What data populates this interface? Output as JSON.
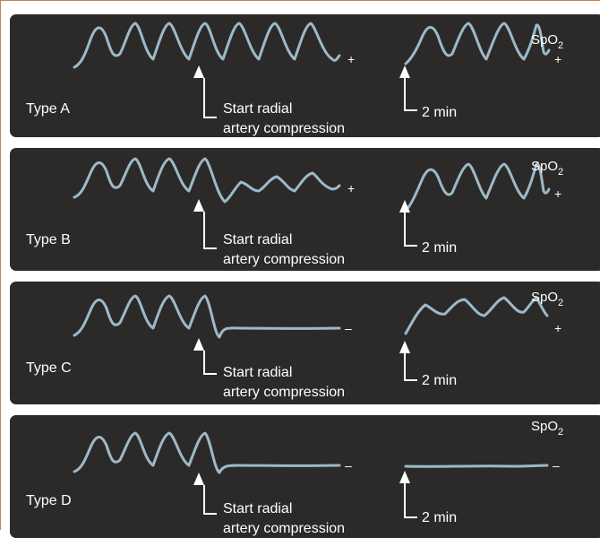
{
  "panels": [
    {
      "type_label": "Type A",
      "caption_line1": "Start radial",
      "caption_line2": "artery compression",
      "sign_left": "+",
      "sign_right": "+",
      "time_label": "2 min",
      "spo2_base": "SpO",
      "spo2_sub": "2"
    },
    {
      "type_label": "Type B",
      "caption_line1": "Start radial",
      "caption_line2": "artery compression",
      "sign_left": "+",
      "sign_right": "+",
      "time_label": "2 min",
      "spo2_base": "SpO",
      "spo2_sub": "2"
    },
    {
      "type_label": "Type C",
      "caption_line1": "Start radial",
      "caption_line2": "artery compression",
      "sign_left": "–",
      "sign_right": "+",
      "time_label": "2 min",
      "spo2_base": "SpO",
      "spo2_sub": "2"
    },
    {
      "type_label": "Type D",
      "caption_line1": "Start radial",
      "caption_line2": "artery compression",
      "sign_left": "–",
      "sign_right": "–",
      "time_label": "2 min",
      "spo2_base": "SpO",
      "spo2_sub": "2"
    }
  ],
  "colors": {
    "panel_bg": "#2b2a29",
    "waveform": "#9db9c8",
    "text": "#ffffff",
    "border": "#c9804f"
  }
}
